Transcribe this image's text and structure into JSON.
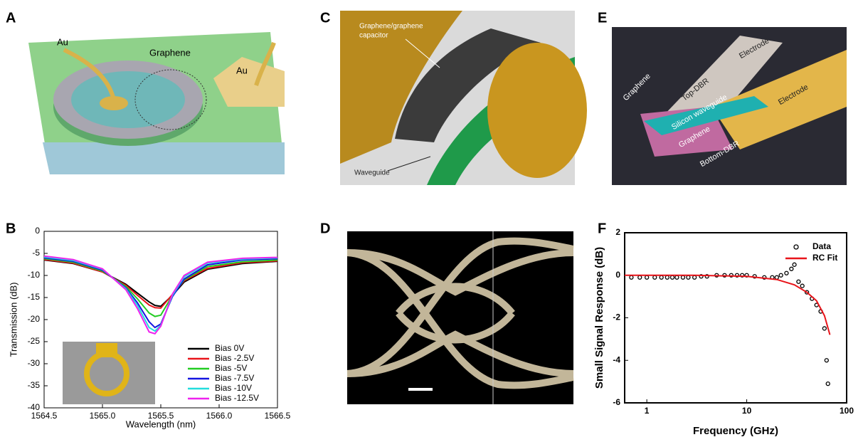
{
  "panel_labels": [
    "A",
    "B",
    "C",
    "D",
    "E",
    "F"
  ],
  "illustrations": {
    "a": {
      "left_label": "Au",
      "center_label": "Graphene",
      "right_label": "Au"
    },
    "c": {
      "capacitor_label": [
        "Graphene/graphene",
        "capacitor"
      ],
      "waveguide_label": "Waveguide"
    },
    "e": {
      "labels": [
        "Electrode",
        "Top-DBR",
        "Graphene",
        "Silicon waveguide",
        "Graphene",
        "Electrode",
        "Bottom-DBR"
      ]
    }
  },
  "chart_data": [
    {
      "type": "line",
      "xlabel": "Wavelength (nm)",
      "ylabel": "Transmission (dB)",
      "x": [
        1564.5,
        1564.75,
        1565.0,
        1565.2,
        1565.3,
        1565.4,
        1565.45,
        1565.5,
        1565.6,
        1565.7,
        1565.9,
        1566.2,
        1566.5
      ],
      "xlim": [
        1564.5,
        1566.5
      ],
      "xticks": [
        {
          "value": 1564.5,
          "label": "1564.5"
        },
        {
          "value": 1565,
          "label": "1565.0"
        },
        {
          "value": 1565.5,
          "label": "1565.5"
        },
        {
          "value": 1566,
          "label": "1566.0"
        },
        {
          "value": 1566.5,
          "label": "1566.5"
        }
      ],
      "ylim": [
        -40,
        0
      ],
      "yticks": [
        0,
        -5,
        -10,
        -15,
        -20,
        -25,
        -30,
        -35,
        -40
      ],
      "legend": "lower right",
      "series": [
        {
          "name": "Bias 0V",
          "color": "#000000",
          "values": [
            -6.5,
            -7.3,
            -9.2,
            -12,
            -14,
            -16,
            -16.8,
            -17,
            -14.5,
            -11.5,
            -8.6,
            -7.3,
            -6.8
          ]
        },
        {
          "name": "Bias -2.5V",
          "color": "#e8141a",
          "values": [
            -6.4,
            -7.2,
            -9.2,
            -12.2,
            -14.5,
            -16.7,
            -17.3,
            -17.4,
            -14.3,
            -11.2,
            -8.4,
            -7.1,
            -6.7
          ]
        },
        {
          "name": "Bias -5V",
          "color": "#22cc22",
          "values": [
            -6.2,
            -7,
            -9,
            -12.5,
            -15.3,
            -18.5,
            -19.3,
            -19,
            -14.5,
            -11,
            -8,
            -6.9,
            -6.5
          ]
        },
        {
          "name": "Bias -7.5V",
          "color": "#1414e0",
          "values": [
            -6,
            -6.8,
            -8.8,
            -12.8,
            -16.2,
            -20.5,
            -21.8,
            -21,
            -14.8,
            -10.8,
            -7.6,
            -6.5,
            -6.2
          ]
        },
        {
          "name": "Bias -10V",
          "color": "#22dddd",
          "values": [
            -5.8,
            -6.6,
            -8.6,
            -13,
            -16.8,
            -21.8,
            -22.6,
            -21.3,
            -14.5,
            -10.3,
            -7.2,
            -6.3,
            -6
          ]
        },
        {
          "name": "Bias -12.5V",
          "color": "#ee22ee",
          "values": [
            -5.6,
            -6.4,
            -8.5,
            -13.2,
            -17.5,
            -22.8,
            -23.2,
            -21.5,
            -14.2,
            -10,
            -7,
            -6.1,
            -5.9
          ]
        }
      ]
    },
    {
      "type": "scatter",
      "xlabel": "Frequency (GHz)",
      "ylabel": "Small Signal Response (dB)",
      "xscale": "log",
      "xlim": [
        0.6,
        100
      ],
      "xticks": [
        1,
        10,
        100
      ],
      "ylim": [
        -6,
        2
      ],
      "yticks": [
        -6,
        -4,
        -2,
        0,
        2
      ],
      "legend": "upper right",
      "series": [
        {
          "name": "Data",
          "color": "#000000",
          "mode": "markers",
          "x": [
            0.7,
            0.85,
            1,
            1.2,
            1.4,
            1.6,
            1.8,
            2,
            2.3,
            2.6,
            3,
            3.5,
            4,
            5,
            6,
            7,
            8,
            9,
            10,
            12,
            15,
            18,
            20,
            22,
            25,
            28,
            30,
            33,
            36,
            40,
            45,
            50,
            55,
            60,
            63,
            65
          ],
          "values": [
            -0.1,
            -0.1,
            -0.1,
            -0.1,
            -0.1,
            -0.1,
            -0.1,
            -0.1,
            -0.1,
            -0.1,
            -0.1,
            -0.05,
            -0.05,
            0,
            0,
            0,
            0,
            0,
            0,
            -0.05,
            -0.1,
            -0.1,
            -0.1,
            0,
            0.1,
            0.3,
            0.5,
            -0.3,
            -0.5,
            -0.8,
            -1.1,
            -1.4,
            -1.7,
            -2.5,
            -4,
            -5.1
          ]
        },
        {
          "name": "RC Fit",
          "color": "#e8141a",
          "mode": "line",
          "x": [
            0.6,
            1,
            3,
            10,
            20,
            30,
            40,
            50,
            60,
            68
          ],
          "values": [
            0,
            0,
            0,
            -0.05,
            -0.2,
            -0.45,
            -0.8,
            -1.2,
            -1.9,
            -2.8
          ]
        }
      ]
    }
  ]
}
